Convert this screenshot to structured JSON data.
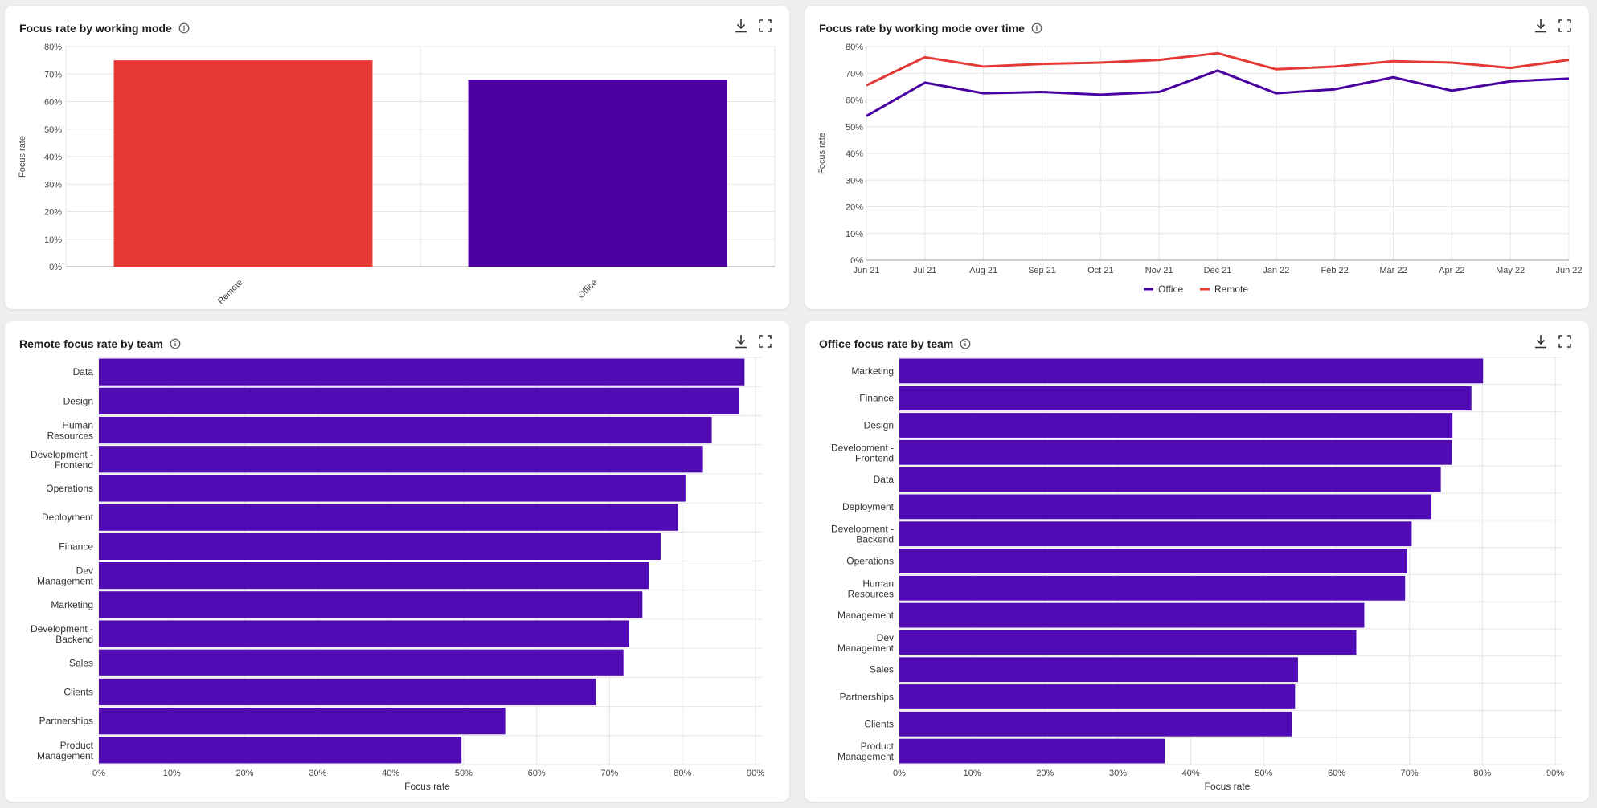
{
  "icons": {
    "info": "info-icon",
    "download": "download-icon",
    "fullscreen": "fullscreen-icon"
  },
  "colors": {
    "remote": "#e53935",
    "office": "#4a00a0",
    "team_bar": "#500bb5",
    "grid": "#e6e6e6",
    "axis_text": "#444444"
  },
  "cards": [
    {
      "title": "Focus rate by working mode"
    },
    {
      "title": "Focus rate by working mode over time"
    },
    {
      "title": "Remote focus rate by team"
    },
    {
      "title": "Office focus rate by team"
    }
  ],
  "chart_data": [
    {
      "type": "bar",
      "title": "Focus rate by working mode",
      "categories": [
        "Remote",
        "Office"
      ],
      "values": [
        75,
        68
      ],
      "colors": [
        "#e53935",
        "#4a00a0"
      ],
      "ylabel": "Focus rate",
      "ylim": [
        0,
        80
      ],
      "yticks": [
        "0%",
        "10%",
        "20%",
        "30%",
        "40%",
        "50%",
        "60%",
        "70%",
        "80%"
      ],
      "grid": true
    },
    {
      "type": "line",
      "title": "Focus rate by working mode over time",
      "x": [
        "Jun 21",
        "Jul 21",
        "Aug 21",
        "Sep 21",
        "Oct 21",
        "Nov 21",
        "Dec 21",
        "Jan 22",
        "Feb 22",
        "Mar 22",
        "Apr 22",
        "May 22",
        "Jun 22"
      ],
      "series": [
        {
          "name": "Office",
          "color": "#4a00a0",
          "values": [
            54,
            66.5,
            62.5,
            63,
            62,
            63,
            71,
            62.5,
            64,
            68.5,
            63.5,
            67,
            68
          ]
        },
        {
          "name": "Remote",
          "color": "#e53935",
          "values": [
            65.5,
            76,
            72.5,
            73.5,
            74,
            75,
            77.5,
            71.5,
            72.5,
            74.5,
            74,
            72,
            75
          ]
        }
      ],
      "ylabel": "Focus rate",
      "ylim": [
        0,
        80
      ],
      "yticks": [
        "0%",
        "10%",
        "20%",
        "30%",
        "40%",
        "50%",
        "60%",
        "70%",
        "80%"
      ],
      "legend": "bottom-center",
      "grid": true
    },
    {
      "type": "bar",
      "orientation": "horizontal",
      "title": "Remote focus rate by team",
      "categories": [
        "Data",
        "Design",
        "Human Resources",
        "Development - Frontend",
        "Operations",
        "Deployment",
        "Finance",
        "Dev Management",
        "Marketing",
        "Development - Backend",
        "Sales",
        "Clients",
        "Partnerships",
        "Product Management"
      ],
      "values": [
        88.5,
        87.8,
        84,
        82.8,
        80.4,
        79.4,
        77,
        75.4,
        74.5,
        72.7,
        71.9,
        68.1,
        55.7,
        49.7
      ],
      "xlabel": "Focus rate",
      "xlim": [
        0,
        90
      ],
      "xticks": [
        "0%",
        "10%",
        "20%",
        "30%",
        "40%",
        "50%",
        "60%",
        "70%",
        "80%",
        "90%"
      ],
      "grid": true
    },
    {
      "type": "bar",
      "orientation": "horizontal",
      "title": "Office focus rate by team",
      "categories": [
        "Marketing",
        "Finance",
        "Design",
        "Development - Frontend",
        "Data",
        "Deployment",
        "Development - Backend",
        "Operations",
        "Human Resources",
        "Management",
        "Dev Management",
        "Sales",
        "Partnerships",
        "Clients",
        "Product Management"
      ],
      "values": [
        80.1,
        78.5,
        75.9,
        75.8,
        74.3,
        73,
        70.3,
        69.7,
        69.4,
        63.8,
        62.7,
        54.7,
        54.3,
        53.9,
        36.4
      ],
      "xlabel": "Focus rate",
      "xlim": [
        0,
        90
      ],
      "xticks": [
        "0%",
        "10%",
        "20%",
        "30%",
        "40%",
        "50%",
        "60%",
        "70%",
        "80%",
        "90%"
      ],
      "grid": true
    }
  ]
}
